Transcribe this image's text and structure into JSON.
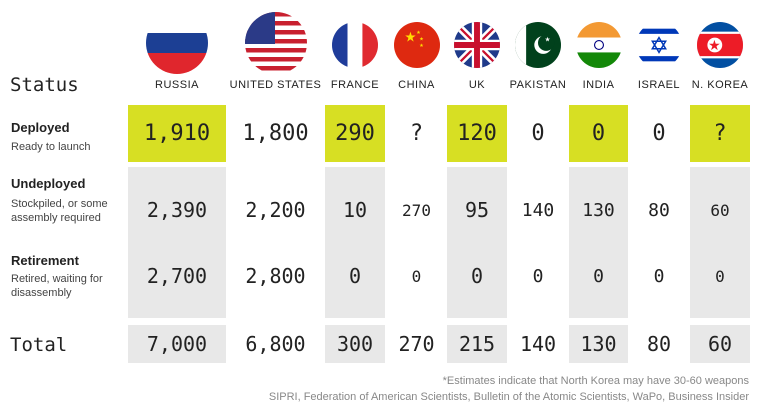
{
  "header": {
    "status_label": "Status",
    "total_label": "Total"
  },
  "colors": {
    "highlight": "#d7df23",
    "grey": "#e8e8e8",
    "white": "#ffffff"
  },
  "rows": [
    {
      "label": "Deployed",
      "sub": "Ready to launch"
    },
    {
      "label": "Undeployed",
      "sub": "Stockpiled, or some assembly required"
    },
    {
      "label": "Retirement",
      "sub": "Retired, waiting for disassembly"
    }
  ],
  "chart_data": {
    "type": "table",
    "columns": [
      "RUSSIA",
      "UNITED STATES",
      "FRANCE",
      "CHINA",
      "UK",
      "PAKISTAN",
      "INDIA",
      "ISRAEL",
      "N. KOREA"
    ],
    "flags": [
      "russia-flag",
      "usa-flag",
      "france-flag",
      "china-flag",
      "uk-flag",
      "pakistan-flag",
      "india-flag",
      "israel-flag",
      "north-korea-flag"
    ],
    "deployed": [
      "1,910",
      "1,800",
      "290",
      "?",
      "120",
      "0",
      "0",
      "0",
      "?"
    ],
    "undeployed": [
      "2,390",
      "2,200",
      "10",
      "270",
      "95",
      "140",
      "130",
      "80",
      "60"
    ],
    "retirement": [
      "2,700",
      "2,800",
      "0",
      "0",
      "0",
      "0",
      "0",
      "0",
      "0"
    ],
    "total": [
      "7,000",
      "6,800",
      "300",
      "270",
      "215",
      "140",
      "130",
      "80",
      "60"
    ]
  },
  "footer": {
    "note": "*Estimates indicate that North Korea may have 30-60 weapons",
    "sources": "SIPRI, Federation of American Scientists, Bulletin of the Atomic Scientists, WaPo, Business Insider"
  }
}
